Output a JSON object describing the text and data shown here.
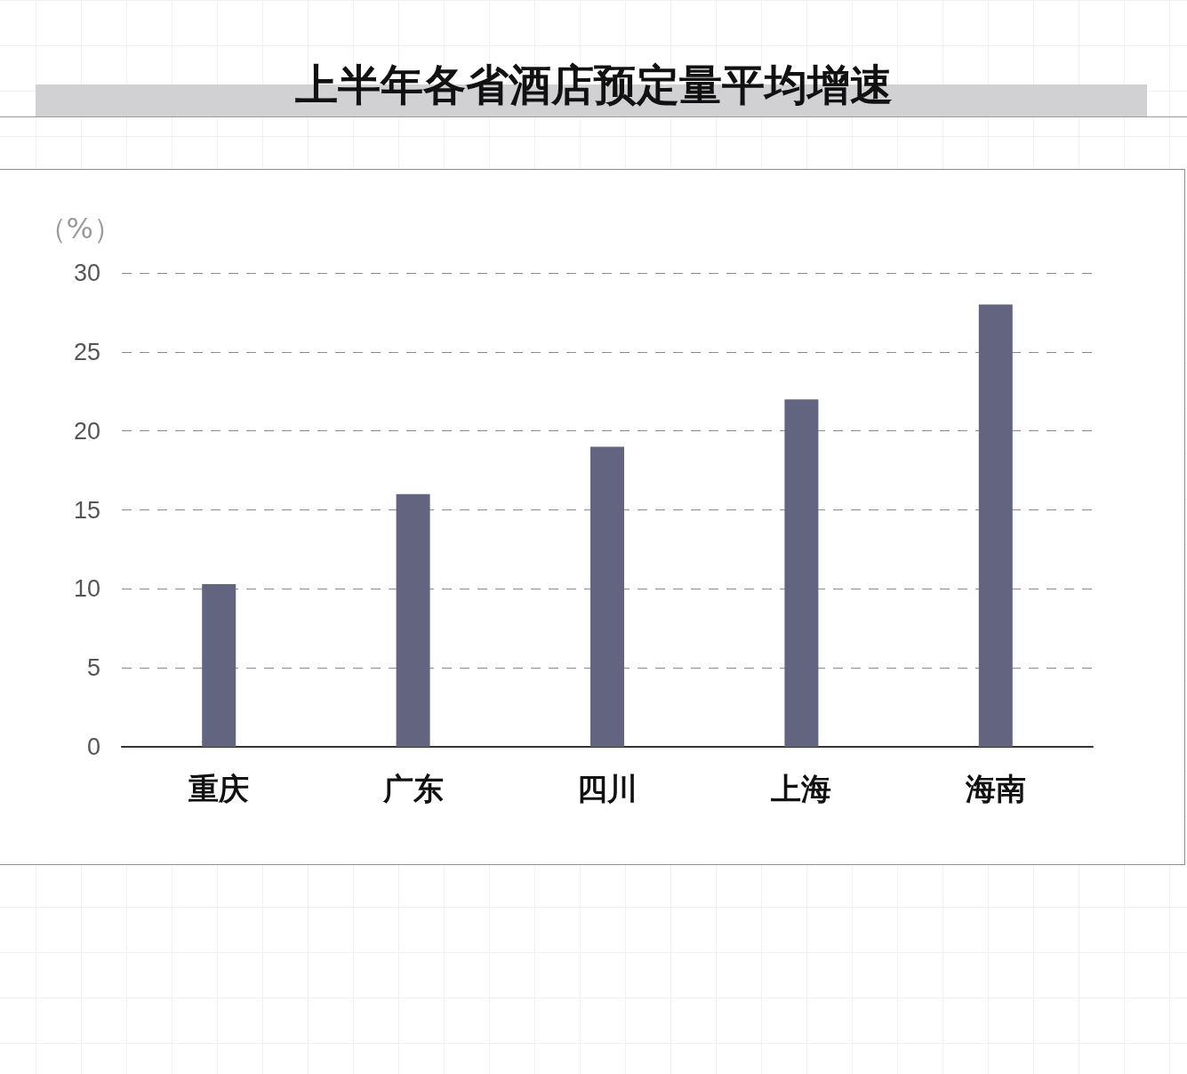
{
  "chart_data": {
    "type": "bar",
    "title": "上半年各省酒店预定量平均增速",
    "ylabel": "（%）",
    "categories": [
      "重庆",
      "广东",
      "四川",
      "上海",
      "海南"
    ],
    "values": [
      10.3,
      16,
      19,
      22,
      28
    ],
    "color": "#636580",
    "ylim": [
      0,
      30
    ],
    "yticks": [
      0,
      5,
      10,
      15,
      20,
      25,
      30
    ],
    "grid": "y"
  }
}
